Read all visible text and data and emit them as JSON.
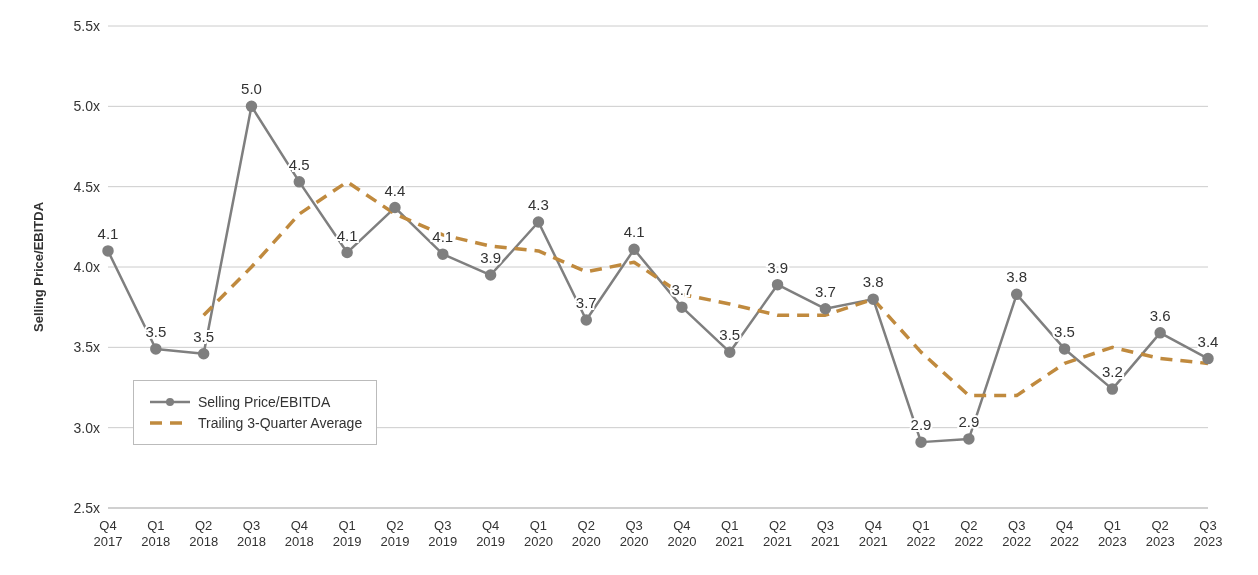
{
  "chart_data": {
    "type": "line",
    "ylabel": "Selling Price/EBITDA",
    "categories": [
      "Q4 2017",
      "Q1 2018",
      "Q2 2018",
      "Q3 2018",
      "Q4 2018",
      "Q1 2019",
      "Q2 2019",
      "Q3 2019",
      "Q4 2019",
      "Q1 2020",
      "Q2 2020",
      "Q3 2020",
      "Q4 2020",
      "Q1 2021",
      "Q2 2021",
      "Q3 2021",
      "Q4 2021",
      "Q1 2022",
      "Q2 2022",
      "Q3 2022",
      "Q4 2022",
      "Q1 2023",
      "Q2 2023",
      "Q3 2023"
    ],
    "series": [
      {
        "name": "Selling Price/EBITDA",
        "color": "#7f7f7f",
        "marker": "circle",
        "line_style": "solid",
        "values": [
          4.1,
          3.49,
          3.46,
          5.0,
          4.53,
          4.09,
          4.37,
          4.08,
          3.95,
          4.28,
          3.67,
          4.11,
          3.75,
          3.47,
          3.89,
          3.74,
          3.8,
          2.91,
          2.93,
          3.83,
          3.49,
          3.24,
          3.59,
          3.43
        ],
        "value_labels": [
          "4.1",
          "3.5",
          "3.5",
          "5.0",
          "4.5",
          "4.1",
          "4.4",
          "4.1",
          "3.9",
          "4.3",
          "3.7",
          "4.1",
          "3.7",
          "3.5",
          "3.9",
          "3.7",
          "3.8",
          "2.9",
          "2.9",
          "3.8",
          "3.5",
          "3.2",
          "3.6",
          "3.4"
        ]
      },
      {
        "name": "Trailing 3-Quarter Average",
        "color": "#c08a3e",
        "marker": "none",
        "line_style": "dashed",
        "values": [
          null,
          null,
          3.7,
          4.0,
          4.33,
          4.53,
          4.33,
          4.2,
          4.13,
          4.1,
          3.97,
          4.03,
          3.83,
          3.77,
          3.7,
          3.7,
          3.8,
          3.47,
          3.2,
          3.2,
          3.4,
          3.5,
          3.43,
          3.4
        ]
      }
    ],
    "ylim": [
      2.5,
      5.5
    ],
    "yticks": [
      {
        "value": 2.5,
        "label": "2.5x"
      },
      {
        "value": 3.0,
        "label": "3.0x"
      },
      {
        "value": 3.5,
        "label": "3.5x"
      },
      {
        "value": 4.0,
        "label": "4.0x"
      },
      {
        "value": 4.5,
        "label": "4.5x"
      },
      {
        "value": 5.0,
        "label": "5.0x"
      },
      {
        "value": 5.5,
        "label": "5.5x"
      }
    ],
    "grid": "y",
    "legend": "bottom left"
  }
}
